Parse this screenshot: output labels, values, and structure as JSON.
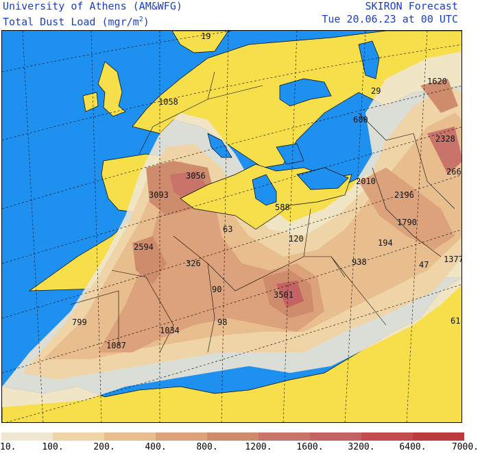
{
  "header": {
    "institution": "University of Athens (AM&WFG)",
    "quantity": "Total Dust Load (mgr/m",
    "quantity_sup": "2",
    "quantity_end": ")",
    "model": "SKIRON Forecast",
    "valid_time": "Tue 20.06.23 at 00 UTC"
  },
  "colors": {
    "sea": "#1e90f0",
    "land": "#f6df4a",
    "border": "#000000"
  },
  "map_values": [
    "19",
    "1058",
    "1620",
    "29",
    "600",
    "2328",
    "3056",
    "266",
    "2010",
    "2196",
    "3093",
    "588",
    "63",
    "1790",
    "120",
    "194",
    "2594",
    "326",
    "938",
    "47",
    "1377",
    "3501",
    "90",
    "799",
    "98",
    "1034",
    "61",
    "1087"
  ],
  "legend": {
    "labels": [
      "10.",
      "100.",
      "200.",
      "400.",
      "800.",
      "1200.",
      "1600.",
      "3200.",
      "6400.",
      "7000."
    ],
    "colors": [
      "#f0e7d3",
      "#eed4a7",
      "#e8be8e",
      "#dca27c",
      "#cf8c6c",
      "#c8746b",
      "#c46364",
      "#c24c4d",
      "#bc3b3c"
    ]
  }
}
